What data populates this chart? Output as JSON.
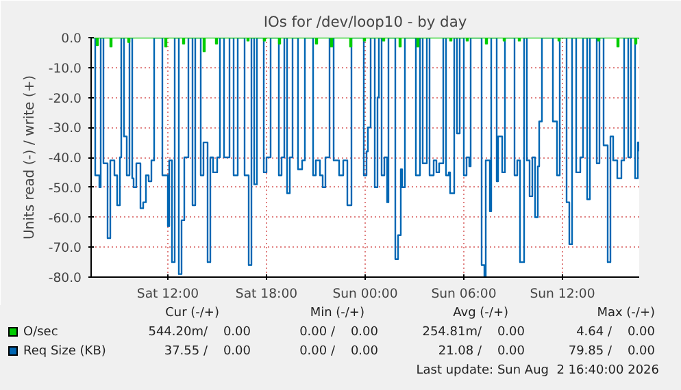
{
  "chart_data": {
    "type": "step",
    "title": "IOs for /dev/loop10 - by day",
    "ylabel": "Units read (-) / write (+)",
    "xlim": [
      "2026-08-01T07:20",
      "2026-08-02T16:40"
    ],
    "ylim": [
      -80,
      0
    ],
    "xticks": [
      {
        "value": "2026-08-01T12:00",
        "label": "Sat 12:00"
      },
      {
        "value": "2026-08-01T18:00",
        "label": "Sat 18:00"
      },
      {
        "value": "2026-08-02T00:00",
        "label": "Sun 00:00"
      },
      {
        "value": "2026-08-02T06:00",
        "label": "Sun 06:00"
      },
      {
        "value": "2026-08-02T12:00",
        "label": "Sun 12:00"
      }
    ],
    "yticks": [
      {
        "value": -80,
        "label": "-80.0"
      },
      {
        "value": -70,
        "label": "-70.0"
      },
      {
        "value": -60,
        "label": "-60.0"
      },
      {
        "value": -50,
        "label": "-50.0"
      },
      {
        "value": -40,
        "label": "-40.0"
      },
      {
        "value": -30,
        "label": "-30.0"
      },
      {
        "value": -20,
        "label": "-20.0"
      },
      {
        "value": -10,
        "label": "-10.0"
      },
      {
        "value": 0,
        "label": "0.0"
      }
    ],
    "grid": true,
    "legend": "bottom left",
    "series": [
      {
        "name": "Req Size (KB)",
        "color": "#0066b3",
        "x": [
          "2026-08-01T07:20",
          "2026-08-01T07:35",
          "2026-08-01T07:50",
          "2026-08-01T07:55",
          "2026-08-01T08:05",
          "2026-08-01T08:20",
          "2026-08-01T08:30",
          "2026-08-01T08:45",
          "2026-08-01T08:55",
          "2026-08-01T09:05",
          "2026-08-01T09:10",
          "2026-08-01T09:20",
          "2026-08-01T09:30",
          "2026-08-01T09:40",
          "2026-08-01T09:50",
          "2026-08-01T09:55",
          "2026-08-01T10:05",
          "2026-08-01T10:20",
          "2026-08-01T10:30",
          "2026-08-01T10:40",
          "2026-08-01T10:50",
          "2026-08-01T11:00",
          "2026-08-01T11:10",
          "2026-08-01T11:40",
          "2026-08-01T12:00",
          "2026-08-01T12:05",
          "2026-08-01T12:15",
          "2026-08-01T12:25",
          "2026-08-01T12:40",
          "2026-08-01T12:50",
          "2026-08-01T13:00",
          "2026-08-01T13:15",
          "2026-08-01T13:30",
          "2026-08-01T13:40",
          "2026-08-01T14:00",
          "2026-08-01T14:10",
          "2026-08-01T14:25",
          "2026-08-01T14:35",
          "2026-08-01T14:45",
          "2026-08-01T15:00",
          "2026-08-01T15:10",
          "2026-08-01T15:25",
          "2026-08-01T15:45",
          "2026-08-01T16:00",
          "2026-08-01T16:15",
          "2026-08-01T16:40",
          "2026-08-01T16:55",
          "2026-08-01T17:05",
          "2026-08-01T17:15",
          "2026-08-01T17:25",
          "2026-08-01T17:50",
          "2026-08-01T18:00",
          "2026-08-01T18:15",
          "2026-08-01T18:45",
          "2026-08-01T18:55",
          "2026-08-01T19:05",
          "2026-08-01T19:15",
          "2026-08-01T19:25",
          "2026-08-01T19:35",
          "2026-08-01T19:55",
          "2026-08-01T20:10",
          "2026-08-01T20:20",
          "2026-08-01T20:50",
          "2026-08-01T21:00",
          "2026-08-01T21:15",
          "2026-08-01T21:25",
          "2026-08-01T21:35",
          "2026-08-01T21:50",
          "2026-08-01T22:05",
          "2026-08-01T22:25",
          "2026-08-01T22:40",
          "2026-08-01T22:55",
          "2026-08-01T23:10",
          "2026-08-01T23:55",
          "2026-08-02T00:05",
          "2026-08-02T00:10",
          "2026-08-02T00:20",
          "2026-08-02T00:35",
          "2026-08-02T00:45",
          "2026-08-02T00:50",
          "2026-08-02T01:00",
          "2026-08-02T01:10",
          "2026-08-02T01:20",
          "2026-08-02T01:25",
          "2026-08-02T01:50",
          "2026-08-02T02:00",
          "2026-08-02T02:10",
          "2026-08-02T02:15",
          "2026-08-02T02:25",
          "2026-08-02T03:05",
          "2026-08-02T03:20",
          "2026-08-02T03:30",
          "2026-08-02T03:45",
          "2026-08-02T03:55",
          "2026-08-02T04:10",
          "2026-08-02T04:20",
          "2026-08-02T04:30",
          "2026-08-02T04:45",
          "2026-08-02T04:55",
          "2026-08-02T05:05",
          "2026-08-02T05:10",
          "2026-08-02T05:25",
          "2026-08-02T05:35",
          "2026-08-02T05:45",
          "2026-08-02T06:00",
          "2026-08-02T06:10",
          "2026-08-02T06:20",
          "2026-08-02T06:25",
          "2026-08-02T07:05",
          "2026-08-02T07:15",
          "2026-08-02T07:20",
          "2026-08-02T07:35",
          "2026-08-02T07:40",
          "2026-08-02T08:00",
          "2026-08-02T08:05",
          "2026-08-02T08:20",
          "2026-08-02T08:30",
          "2026-08-02T09:05",
          "2026-08-02T09:15",
          "2026-08-02T09:25",
          "2026-08-02T09:40",
          "2026-08-02T09:50",
          "2026-08-02T10:00",
          "2026-08-02T10:10",
          "2026-08-02T10:20",
          "2026-08-02T10:30",
          "2026-08-02T10:35",
          "2026-08-02T10:45",
          "2026-08-02T11:25",
          "2026-08-02T11:40",
          "2026-08-02T11:50",
          "2026-08-02T12:15",
          "2026-08-02T12:25",
          "2026-08-02T12:35",
          "2026-08-02T12:50",
          "2026-08-02T13:05",
          "2026-08-02T13:15",
          "2026-08-02T13:30",
          "2026-08-02T13:40",
          "2026-08-02T14:05",
          "2026-08-02T14:15",
          "2026-08-02T14:30",
          "2026-08-02T14:45",
          "2026-08-02T14:55",
          "2026-08-02T15:05",
          "2026-08-02T15:20",
          "2026-08-02T15:35",
          "2026-08-02T15:45",
          "2026-08-02T16:00",
          "2026-08-02T16:10",
          "2026-08-02T16:25",
          "2026-08-02T16:35",
          "2026-08-02T16:40"
        ],
        "values": [
          0,
          -46,
          -50,
          0,
          -42,
          -67,
          -41,
          -46,
          -56,
          -40,
          0,
          -33,
          -46,
          0,
          -47,
          -50,
          -42,
          -57,
          -55,
          -46,
          -48,
          -41,
          0,
          -46,
          -63,
          -41,
          -75,
          0,
          -79,
          -61,
          -40,
          0,
          -56,
          0,
          -46,
          -35,
          -75,
          -40,
          -45,
          -40,
          0,
          -40,
          0,
          -46,
          0,
          -46,
          -76,
          0,
          -49,
          0,
          -45,
          -40,
          0,
          -46,
          -40,
          0,
          -52,
          -40,
          0,
          -44,
          -41,
          0,
          -46,
          -41,
          -46,
          -50,
          -40,
          0,
          -41,
          -46,
          -41,
          -56,
          0,
          -46,
          -38,
          -30,
          0,
          -50,
          -20,
          0,
          -46,
          -40,
          -55,
          0,
          -74,
          -66,
          -44,
          -50,
          0,
          -46,
          0,
          -42,
          0,
          -46,
          -41,
          -45,
          -42,
          0,
          -46,
          -45,
          -52,
          0,
          -32,
          0,
          -46,
          -40,
          -43,
          0,
          -76,
          -80,
          -41,
          -58,
          0,
          -48,
          -33,
          -45,
          0,
          -46,
          -41,
          -75,
          0,
          -41,
          -53,
          -40,
          -60,
          -43,
          -28,
          0,
          -28,
          -46,
          0,
          -55,
          -69,
          0,
          -45,
          -40,
          0,
          -54,
          0,
          -42,
          0,
          -36,
          -75,
          -33,
          -41,
          -47,
          -41,
          0,
          -40,
          0,
          -47,
          -35,
          -38
        ]
      },
      {
        "name": "O/sec",
        "color": "#00cc00",
        "x": [
          "2026-08-01T07:20",
          "2026-08-01T07:40",
          "2026-08-01T07:45",
          "2026-08-01T08:30",
          "2026-08-01T08:35",
          "2026-08-01T09:35",
          "2026-08-01T09:40",
          "2026-08-01T11:50",
          "2026-08-01T11:55",
          "2026-08-01T12:55",
          "2026-08-01T13:00",
          "2026-08-01T14:10",
          "2026-08-01T14:15",
          "2026-08-01T14:55",
          "2026-08-01T15:00",
          "2026-08-01T16:50",
          "2026-08-01T16:55",
          "2026-08-01T17:50",
          "2026-08-01T17:55",
          "2026-08-01T18:45",
          "2026-08-01T18:50",
          "2026-08-01T21:00",
          "2026-08-01T21:05",
          "2026-08-01T21:55",
          "2026-08-01T22:00",
          "2026-08-01T23:05",
          "2026-08-01T23:10",
          "2026-08-01T23:55",
          "2026-08-02T00:00",
          "2026-08-02T01:05",
          "2026-08-02T01:10",
          "2026-08-02T02:05",
          "2026-08-02T02:10",
          "2026-08-02T03:10",
          "2026-08-02T03:15",
          "2026-08-02T05:10",
          "2026-08-02T05:15",
          "2026-08-02T06:10",
          "2026-08-02T06:15",
          "2026-08-02T07:20",
          "2026-08-02T07:25",
          "2026-08-02T08:25",
          "2026-08-02T08:30",
          "2026-08-02T09:20",
          "2026-08-02T09:25",
          "2026-08-02T11:45",
          "2026-08-02T11:50",
          "2026-08-02T14:10",
          "2026-08-02T14:15",
          "2026-08-02T15:20",
          "2026-08-02T15:25",
          "2026-08-02T16:25",
          "2026-08-02T16:30",
          "2026-08-02T16:40"
        ],
        "values": [
          0,
          -2.5,
          0,
          -3,
          0,
          -1.5,
          0,
          -3,
          0,
          -2,
          0,
          -4.6,
          0,
          -2,
          0,
          -1,
          0,
          -1,
          0,
          -2,
          0,
          -2,
          0,
          -3,
          0,
          -3,
          0,
          -1,
          0,
          -1,
          0,
          -3,
          0,
          -3,
          0,
          -1,
          0,
          -1,
          0,
          -2,
          0,
          -1,
          0,
          -1,
          0,
          -1,
          0,
          -1,
          0,
          -3,
          0,
          -2,
          0,
          -0.5
        ]
      }
    ],
    "annotations": [
      "Cur (-/+)",
      "Min (-/+)",
      "Avg (-/+)",
      "Max (-/+)",
      "544.20m/    0.00",
      "0.00 /    0.00",
      "254.81m/    0.00",
      "4.64 /    0.00",
      "37.55 /    0.00",
      "0.00 /    0.00",
      "21.08 /    0.00",
      "79.85 /    0.00",
      "Last update: Sun Aug  2 16:40:00 2026"
    ]
  }
}
